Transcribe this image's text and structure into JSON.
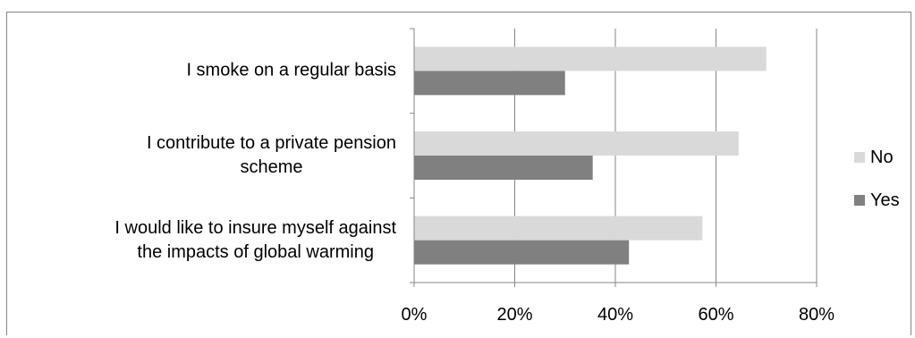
{
  "chart_data": {
    "type": "bar",
    "orientation": "horizontal",
    "categories": [
      "I smoke on a regular basis",
      "I contribute to a private pension scheme",
      "I would like to insure myself against the impacts of global warming"
    ],
    "category_display": [
      "I smoke on a regular basis",
      "I contribute to a private pension\nscheme",
      "I would like to insure myself against\nthe impacts of global warming"
    ],
    "series": [
      {
        "name": "No",
        "color": "#d9d9d9",
        "values": [
          70,
          64.5,
          57.3
        ]
      },
      {
        "name": "Yes",
        "color": "#808080",
        "values": [
          30,
          35.5,
          42.7
        ]
      }
    ],
    "xlim": [
      0,
      80
    ],
    "ticks": [
      0,
      20,
      40,
      60,
      80
    ],
    "tick_labels": [
      "0%",
      "20%",
      "40%",
      "60%",
      "80%"
    ],
    "grid": true,
    "legend_position": "right",
    "title": "",
    "xlabel": "",
    "ylabel": ""
  }
}
